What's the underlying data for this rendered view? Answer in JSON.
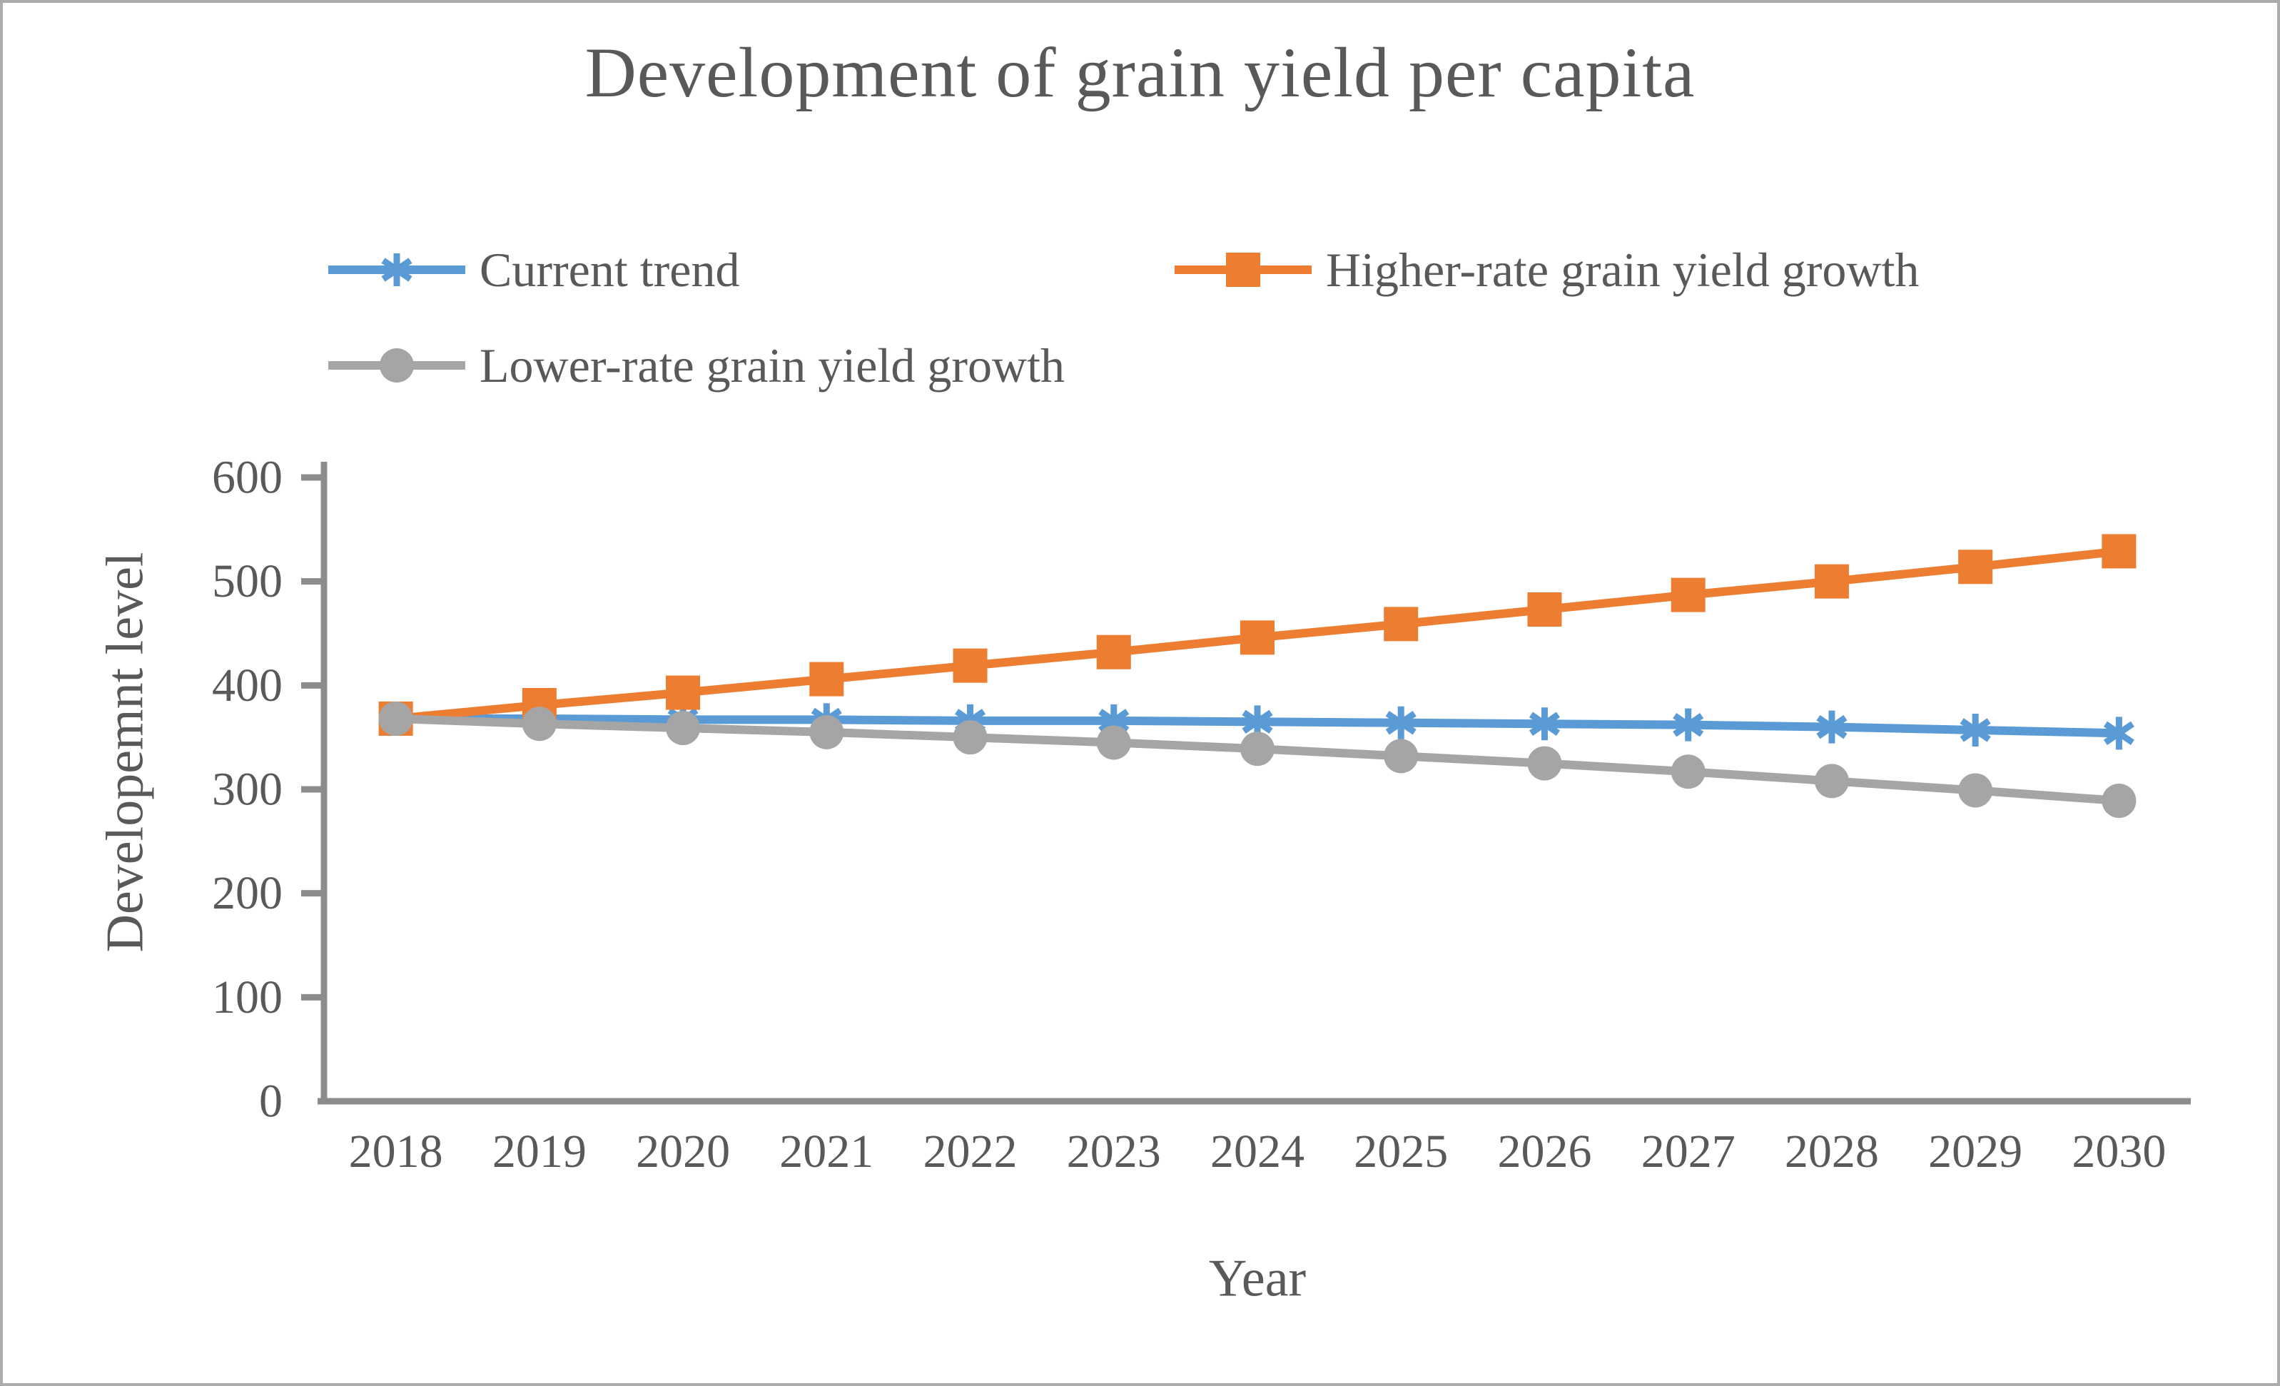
{
  "figure": {
    "background": "#FFFFFF",
    "border_color": "#ACACAC",
    "text_color": "#595959",
    "axis_color": "#8C8C8C"
  },
  "chart_data": {
    "type": "line",
    "title": "Development of grain yield per capita",
    "xlabel": "Year",
    "ylabel": "Developemnt level",
    "categories": [
      2018,
      2019,
      2020,
      2021,
      2022,
      2023,
      2024,
      2025,
      2026,
      2027,
      2028,
      2029,
      2030
    ],
    "series": [
      {
        "name": "Current trend",
        "color": "#5B9BD5",
        "marker": "asterisk",
        "values": [
          368,
          368,
          367,
          367,
          366,
          366,
          365,
          364,
          363,
          362,
          360,
          357,
          354
        ]
      },
      {
        "name": "Higher-rate grain yield growth",
        "color": "#ED7D31",
        "marker": "square",
        "values": [
          368,
          381,
          393,
          406,
          419,
          432,
          446,
          459,
          473,
          487,
          500,
          514,
          529
        ]
      },
      {
        "name": "Lower-rate grain yield growth",
        "color": "#A5A5A5",
        "marker": "circle",
        "values": [
          368,
          363,
          359,
          355,
          350,
          345,
          339,
          332,
          325,
          317,
          308,
          299,
          289
        ]
      }
    ],
    "ylim": [
      0,
      600
    ],
    "yticks": [
      0,
      100,
      200,
      300,
      400,
      500,
      600
    ],
    "grid": false,
    "legend_position": "top"
  }
}
